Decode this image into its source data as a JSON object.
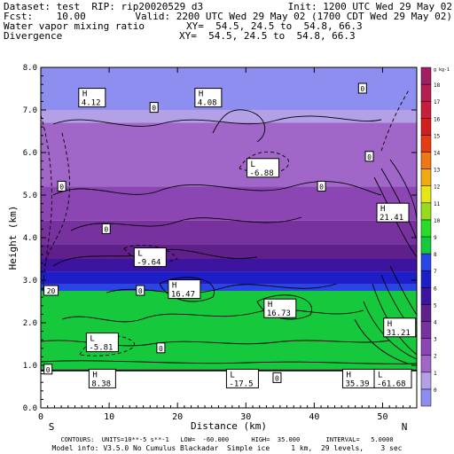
{
  "header": {
    "line1_left": "Dataset: test  RIP: rip20020529 d3",
    "line1_right": "Init: 1200 UTC Wed 29 May 02",
    "line2_left": "Fcst:    10.00",
    "line2_right": "Valid: 2200 UTC Wed 29 May 02 (1700 CDT Wed 29 May 02)",
    "line3_left": "Water vapor mixing ratio",
    "line3_right": "XY=  54.5, 24.5 to  54.8, 66.3",
    "line4_left": "Divergence",
    "line4_right": "XY=  54.5, 24.5 to  54.8, 66.3"
  },
  "footer": {
    "line1": "CONTOURS:  UNITS=10**-5 s**-1   LOW=  -60.000      HIGH=  35.000       INTERVAL=   5.0000",
    "line2": "Model info: V3.5.0 No Cumulus Blackadar  Simple ice     1 km,  29 levels,    3 sec"
  },
  "chart_data": {
    "type": "heatmap",
    "xlabel": "Distance (km)",
    "ylabel": "Height (km)",
    "x_endpoints": {
      "left": "S",
      "right": "N"
    },
    "xlim": [
      0,
      55
    ],
    "ylim": [
      0,
      8
    ],
    "x_ticks": [
      0,
      10,
      20,
      30,
      40,
      50
    ],
    "y_ticks": [
      "0.0",
      "1.0",
      "2.0",
      "3.0",
      "4.0",
      "5.0",
      "6.0",
      "7.0",
      "8.0"
    ],
    "colorbar": {
      "unit": "g kg-1",
      "labels": [
        "0",
        "1",
        "2",
        "3",
        "4",
        "5",
        "6",
        "7",
        "8",
        "9",
        "10",
        "11",
        "12",
        "13",
        "14",
        "15",
        "16",
        "17",
        "18"
      ],
      "colors": [
        "#8e8ef0",
        "#b4a0e6",
        "#a066c8",
        "#8c46b4",
        "#7832a0",
        "#60208c",
        "#3c14a0",
        "#1e1ec8",
        "#2846e6",
        "#16c83c",
        "#28dc28",
        "#96dc1e",
        "#e6e614",
        "#f0aa14",
        "#f07814",
        "#e63c14",
        "#d21e1e",
        "#c81e3c",
        "#b41e50",
        "#a01e64"
      ]
    },
    "bands": [
      {
        "y_range": [
          7.0,
          8.0
        ],
        "value": 0.5
      },
      {
        "y_range": [
          6.7,
          7.0
        ],
        "value": 1.5
      },
      {
        "y_range": [
          5.2,
          6.7
        ],
        "value": 2.5
      },
      {
        "y_range": [
          4.4,
          5.2
        ],
        "value": 3.5
      },
      {
        "y_range": [
          3.85,
          4.4
        ],
        "value": 4.5
      },
      {
        "y_range": [
          3.5,
          3.85
        ],
        "value": 5.5
      },
      {
        "y_range": [
          3.2,
          3.5
        ],
        "value": 6.5
      },
      {
        "y_range": [
          2.9,
          3.2
        ],
        "value": 7.5
      },
      {
        "y_range": [
          2.75,
          2.9
        ],
        "value": 8.5
      },
      {
        "y_range": [
          0.9,
          2.75
        ],
        "value": 9.5
      }
    ],
    "terrain_top_km": 0.88,
    "annotations": [
      {
        "type": "H",
        "value": "4.12",
        "x": 7.5,
        "y": 7.3
      },
      {
        "type": "H",
        "value": "4.08",
        "x": 24.5,
        "y": 7.3
      },
      {
        "type": "L",
        "value": "-6.88",
        "x": 32.5,
        "y": 5.65
      },
      {
        "type": "H",
        "value": "21.41",
        "x": 51.5,
        "y": 4.6
      },
      {
        "type": "L",
        "value": "-9.64",
        "x": 16,
        "y": 3.55
      },
      {
        "type": "H",
        "value": "16.47",
        "x": 21,
        "y": 2.8
      },
      {
        "type": "H",
        "value": "16.73",
        "x": 35,
        "y": 2.35
      },
      {
        "type": "H",
        "value": "31.21",
        "x": 52.5,
        "y": 1.9
      },
      {
        "type": "L",
        "value": "-5.81",
        "x": 9,
        "y": 1.55
      },
      {
        "type": "H",
        "value": "8.38",
        "x": 9,
        "y": 0.7
      },
      {
        "type": "L",
        "value": "-17.5",
        "x": 29.5,
        "y": 0.7
      },
      {
        "type": "H",
        "value": "35.39",
        "x": 46.5,
        "y": 0.7
      },
      {
        "type": "L",
        "value": "-61.68",
        "x": 51.5,
        "y": 0.7
      }
    ],
    "contour_zero_labels": [
      {
        "value": "0",
        "x": 16.5,
        "y": 7.05
      },
      {
        "value": "0",
        "x": 47,
        "y": 7.5
      },
      {
        "value": "0",
        "x": 48,
        "y": 5.9
      },
      {
        "value": "0",
        "x": 3,
        "y": 5.2
      },
      {
        "value": "0",
        "x": 41,
        "y": 5.2
      },
      {
        "value": "0",
        "x": 9.5,
        "y": 4.2
      },
      {
        "value": "0",
        "x": 14.5,
        "y": 2.75
      },
      {
        "value": "0",
        "x": 17.5,
        "y": 1.4
      },
      {
        "value": "0",
        "x": 34.5,
        "y": 0.7
      },
      {
        "value": "0",
        "x": 1,
        "y": 0.9
      }
    ],
    "side_label": {
      "value": "20",
      "x": 1.5,
      "y": 2.75
    }
  }
}
